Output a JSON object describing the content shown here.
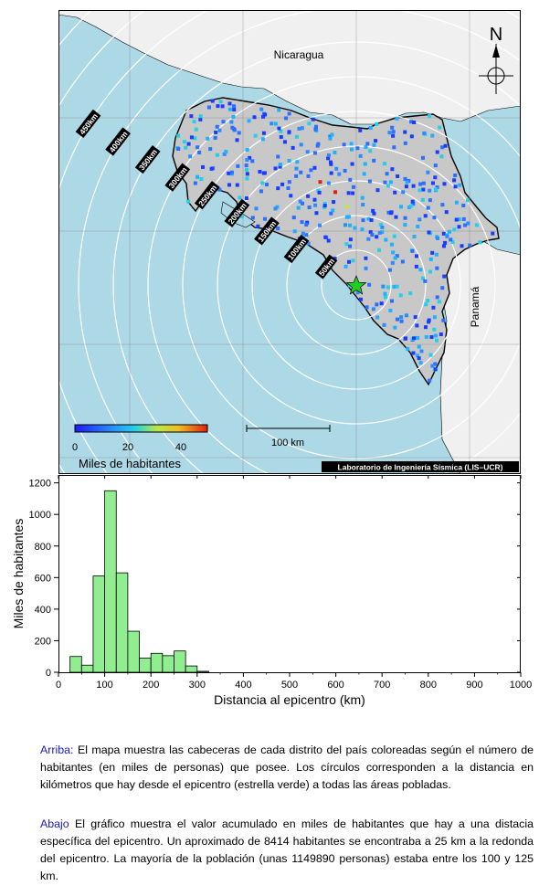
{
  "map": {
    "countries": {
      "nicaragua": "Nicaragua",
      "panama": "Panamá"
    },
    "north_label": "N",
    "ring_labels": [
      "50km",
      "100km",
      "150km",
      "200km",
      "250km",
      "300km",
      "350km",
      "400km",
      "450km"
    ],
    "scale_label": "100 km",
    "colorbar": {
      "ticks": [
        "0",
        "20",
        "40"
      ],
      "title": "Miles de habitantes"
    },
    "credit": "Laboratorio de Ingeniería Sísmica (LIS–UCR)",
    "colors": {
      "sea": "#add8e6",
      "land": "#c8c8c8",
      "outside_land": "#f0f0f0",
      "epicenter": "#22cc22"
    }
  },
  "chart_data": {
    "type": "bar",
    "xlabel": "Distancia al epicentro (km)",
    "ylabel": "Miles de habitantes",
    "xlim": [
      0,
      1000
    ],
    "ylim": [
      0,
      1250
    ],
    "xticks": [
      "0",
      "100",
      "200",
      "300",
      "400",
      "500",
      "600",
      "700",
      "800",
      "900",
      "1000"
    ],
    "yticks": [
      "0",
      "200",
      "400",
      "600",
      "800",
      "1000",
      "1200"
    ],
    "bin_width": 25,
    "bin_starts": [
      25,
      50,
      75,
      100,
      125,
      150,
      175,
      200,
      225,
      250,
      275,
      300
    ],
    "values": [
      100,
      45,
      610,
      1150,
      630,
      260,
      90,
      120,
      105,
      135,
      40,
      6
    ],
    "bar_color": "#90ee90"
  },
  "captions": {
    "top_lead": "Arriba:",
    "top_text": " El mapa muestra las cabeceras de cada distrito del país coloreadas según el número de habitantes (en miles de personas) que posee.  Los círculos corresponden a la distancia en kilómetros que hay desde el epicentro (estrella verde) a todas las áreas pobladas.",
    "bottom_lead": "Abajo",
    "bottom_text": " El gráfico muestra el valor acumulado en miles de habitantes que hay a una distacia específica del epicentro.  Un aproximado de 8414 habitantes se encontraba a 25 km a la redonda del epicentro.  La mayoría de la población (unas 1149890 personas) estaba entre los 100 y 125 km."
  }
}
